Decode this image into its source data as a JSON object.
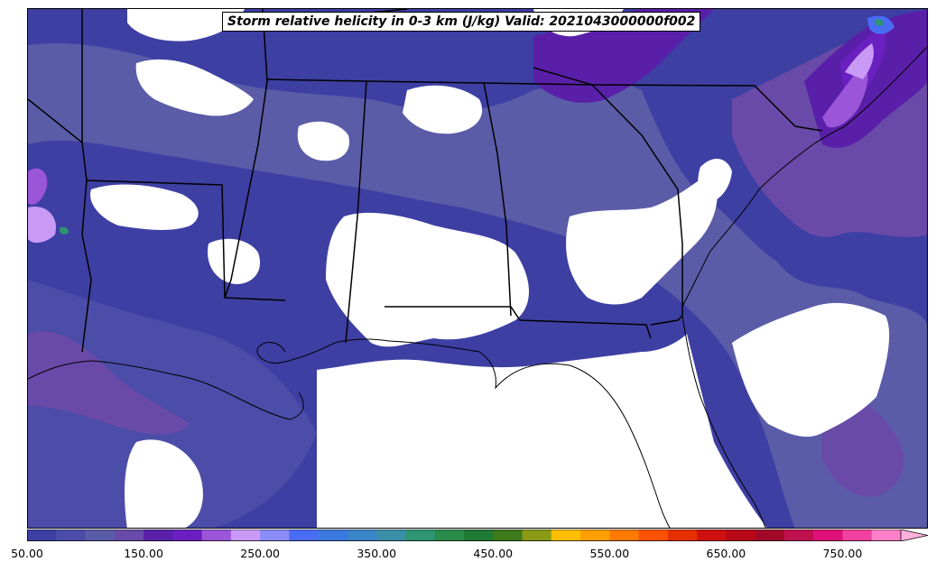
{
  "title": "Storm relative helicity in 0-3 km (J/kg) Valid: 2021043000000f002",
  "colorbar": {
    "min": 50,
    "max": 800,
    "step": 25,
    "extend": "max",
    "tick_labels": [
      "50.00",
      "150.00",
      "250.00",
      "350.00",
      "450.00",
      "550.00",
      "650.00",
      "750.00"
    ],
    "tick_values": [
      50,
      150,
      250,
      350,
      450,
      550,
      650,
      750
    ],
    "colors": [
      "#3d3fa3",
      "#4b4da8",
      "#5a5ca8",
      "#6a4aa8",
      "#5a1fa8",
      "#6a1fc0",
      "#9a55d8",
      "#c89af5",
      "#8a8cf7",
      "#4a6cf5",
      "#3a7ae0",
      "#3a84c8",
      "#3a8ea8",
      "#2e9472",
      "#2a8a4a",
      "#1f7a34",
      "#3d7a1a",
      "#8a9a14",
      "#ffbf00",
      "#ff9f00",
      "#ff7a00",
      "#ff5200",
      "#e63000",
      "#d01010",
      "#b80818",
      "#a00a28",
      "#c01050",
      "#e0107a",
      "#f040a0",
      "#ff80c8"
    ],
    "over_color": "#ffb0dc"
  },
  "map": {
    "region": "Southeastern United States",
    "field": "Storm relative helicity 0-3 km",
    "units": "J/kg",
    "background_fill": "#ffffff",
    "dominant_colors": [
      "#3d3fa3",
      "#5a5ca8",
      "#6a4aa8",
      "#5a1fa8",
      "#c89af5",
      "#4a6cf5",
      "#2e9472"
    ]
  }
}
